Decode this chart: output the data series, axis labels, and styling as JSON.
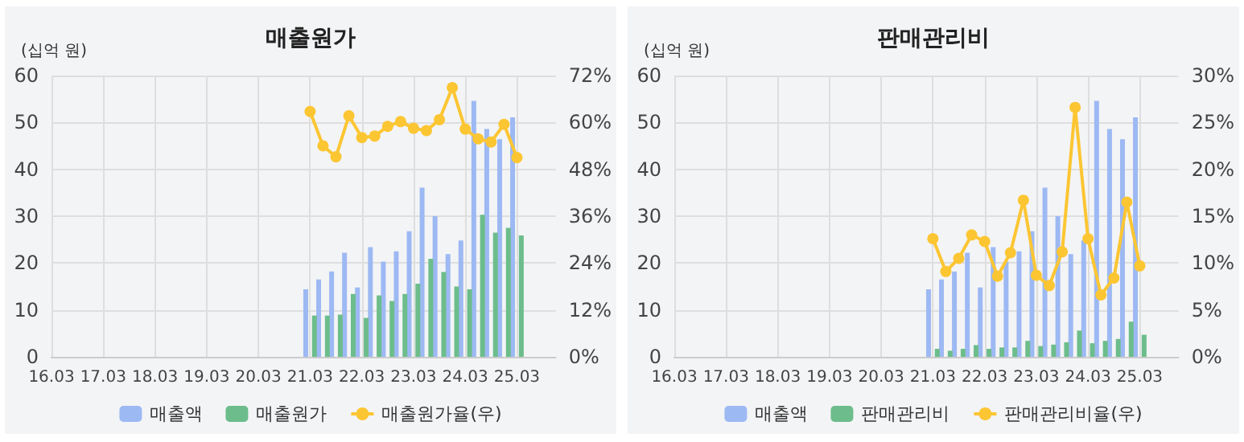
{
  "chart_data": [
    {
      "type": "bar",
      "title": "매출원가",
      "ylabel": "(십억 원)",
      "categories": [
        "16.03",
        null,
        null,
        null,
        "17.03",
        null,
        null,
        null,
        "18.03",
        null,
        null,
        null,
        "19.03",
        null,
        null,
        null,
        "20.03",
        null,
        null,
        null,
        "21.03",
        null,
        null,
        null,
        "22.03",
        null,
        null,
        null,
        "23.03",
        null,
        null,
        null,
        "24.03",
        null,
        null,
        null,
        "25.03",
        null,
        null,
        null
      ],
      "series": [
        {
          "name": "매출액",
          "color": "#9db9f3",
          "values": [
            null,
            null,
            null,
            null,
            null,
            null,
            null,
            null,
            null,
            null,
            null,
            null,
            null,
            null,
            null,
            null,
            null,
            null,
            null,
            null,
            14.4,
            16.5,
            18.2,
            22.2,
            14.8,
            23.4,
            20.3,
            22.5,
            26.8,
            36.1,
            30.0,
            21.9,
            24.8,
            54.6,
            48.6,
            46.4,
            51.1,
            null,
            null,
            null
          ]
        },
        {
          "name": "매출원가",
          "color": "#6cbd8b",
          "values": [
            null,
            null,
            null,
            null,
            null,
            null,
            null,
            null,
            null,
            null,
            null,
            null,
            null,
            null,
            null,
            null,
            null,
            null,
            null,
            null,
            8.8,
            8.8,
            9.0,
            13.4,
            8.3,
            13.1,
            11.9,
            13.4,
            15.6,
            20.9,
            18.1,
            15.0,
            14.4,
            30.3,
            26.5,
            27.5,
            25.9,
            null,
            null,
            null
          ]
        },
        {
          "name": "매출원가율(우)",
          "type": "line",
          "axis": "y2",
          "color": "#fcc633",
          "values": [
            null,
            null,
            null,
            null,
            null,
            null,
            null,
            null,
            null,
            null,
            null,
            null,
            null,
            null,
            null,
            null,
            null,
            null,
            null,
            null,
            62.8,
            54.0,
            51.2,
            61.7,
            56.1,
            56.5,
            59.0,
            60.2,
            58.5,
            57.9,
            60.7,
            68.9,
            58.3,
            55.8,
            55.0,
            59.5,
            51.0,
            null,
            null,
            null
          ]
        }
      ],
      "ylim": [
        0,
        60
      ],
      "yticks": [
        0,
        10,
        20,
        30,
        40,
        50,
        60
      ],
      "y2lim": [
        0,
        72
      ],
      "y2ticks": [
        {
          "value": 0,
          "label": "0%"
        },
        {
          "value": 12,
          "label": "12%"
        },
        {
          "value": 24,
          "label": "24%"
        },
        {
          "value": 36,
          "label": "36%"
        },
        {
          "value": 48,
          "label": "48%"
        },
        {
          "value": 60,
          "label": "60%"
        },
        {
          "value": 72,
          "label": "72%"
        }
      ],
      "grid": true,
      "legend": "bottom",
      "marker": "circle"
    },
    {
      "type": "bar",
      "title": "판매관리비",
      "ylabel": "(십억 원)",
      "categories": [
        "16.03",
        null,
        null,
        null,
        "17.03",
        null,
        null,
        null,
        "18.03",
        null,
        null,
        null,
        "19.03",
        null,
        null,
        null,
        "20.03",
        null,
        null,
        null,
        "21.03",
        null,
        null,
        null,
        "22.03",
        null,
        null,
        null,
        "23.03",
        null,
        null,
        null,
        "24.03",
        null,
        null,
        null,
        "25.03",
        null,
        null,
        null
      ],
      "series": [
        {
          "name": "매출액",
          "color": "#9db9f3",
          "values": [
            null,
            null,
            null,
            null,
            null,
            null,
            null,
            null,
            null,
            null,
            null,
            null,
            null,
            null,
            null,
            null,
            null,
            null,
            null,
            null,
            14.4,
            16.5,
            18.2,
            22.2,
            14.8,
            23.4,
            20.3,
            22.5,
            26.8,
            36.1,
            30.0,
            21.9,
            24.8,
            54.6,
            48.6,
            46.4,
            51.1,
            null,
            null,
            null
          ]
        },
        {
          "name": "판매관리비",
          "color": "#6cbd8b",
          "values": [
            null,
            null,
            null,
            null,
            null,
            null,
            null,
            null,
            null,
            null,
            null,
            null,
            null,
            null,
            null,
            null,
            null,
            null,
            null,
            null,
            1.7,
            1.3,
            1.7,
            2.5,
            1.7,
            2.0,
            2.0,
            3.4,
            2.3,
            2.6,
            3.1,
            5.6,
            2.9,
            3.4,
            3.8,
            7.5,
            4.7,
            null,
            null,
            null
          ]
        },
        {
          "name": "판매관리비율(우)",
          "type": "line",
          "axis": "y2",
          "color": "#fcc633",
          "values": [
            null,
            null,
            null,
            null,
            null,
            null,
            null,
            null,
            null,
            null,
            null,
            null,
            null,
            null,
            null,
            null,
            null,
            null,
            null,
            null,
            12.6,
            9.1,
            10.5,
            13.0,
            12.3,
            8.6,
            11.1,
            16.7,
            8.7,
            7.6,
            11.2,
            26.6,
            12.6,
            6.6,
            8.4,
            16.5,
            9.7,
            null,
            null,
            null
          ]
        }
      ],
      "ylim": [
        0,
        60
      ],
      "yticks": [
        0,
        10,
        20,
        30,
        40,
        50,
        60
      ],
      "y2lim": [
        0,
        30
      ],
      "y2ticks": [
        {
          "value": 0,
          "label": "0%"
        },
        {
          "value": 5,
          "label": "5%"
        },
        {
          "value": 10,
          "label": "10%"
        },
        {
          "value": 15,
          "label": "15%"
        },
        {
          "value": 20,
          "label": "20%"
        },
        {
          "value": 25,
          "label": "25%"
        },
        {
          "value": 30,
          "label": "30%"
        }
      ],
      "grid": true,
      "legend": "bottom",
      "marker": "circle"
    }
  ]
}
